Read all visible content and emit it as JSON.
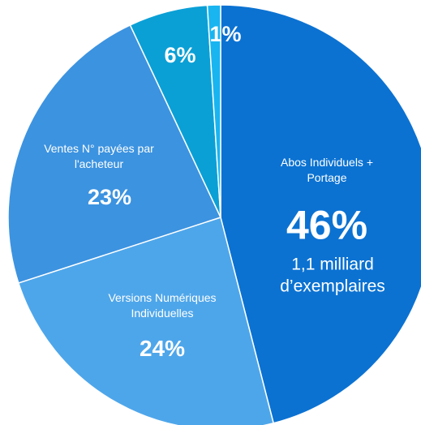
{
  "chart_data": {
    "type": "pie",
    "categories": [
      "Abos Individuels + Portage",
      "Versions Numériques Individuelles",
      "Ventes N° payées par l'acheteur",
      null,
      null
    ],
    "values": [
      46,
      24,
      23,
      6,
      1
    ],
    "value_labels": [
      "46%",
      "24%",
      "23%",
      "6%",
      "1%"
    ],
    "colors": [
      "#0b72d2",
      "#4ea6ea",
      "#3c93e0",
      "#0aa0d6",
      "#19b5f0"
    ],
    "annotations": [
      "1,1 milliard d’exemplaires"
    ]
  }
}
